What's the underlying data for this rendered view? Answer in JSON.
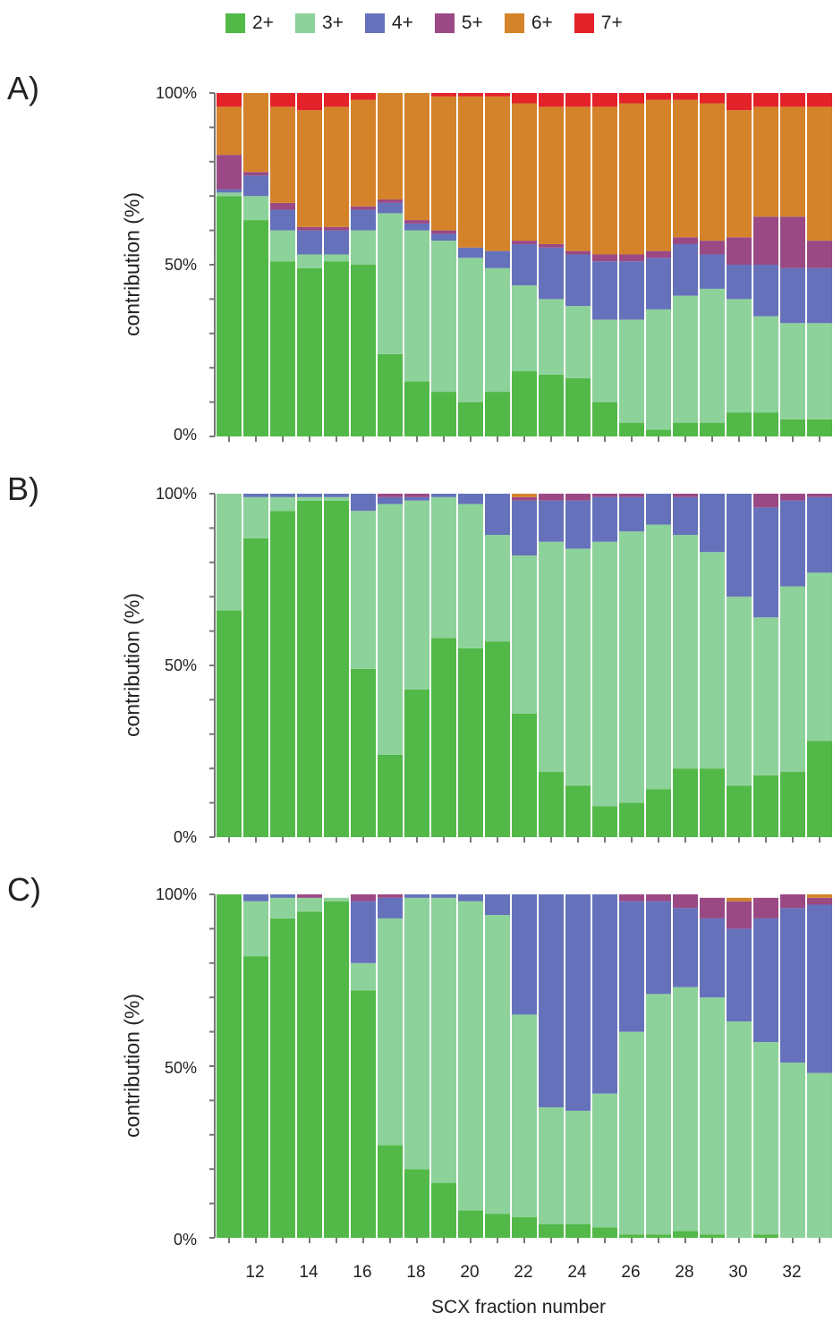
{
  "legend": [
    {
      "label": "2+",
      "color": "#52b848"
    },
    {
      "label": "3+",
      "color": "#8dd29a"
    },
    {
      "label": "4+",
      "color": "#6572bb"
    },
    {
      "label": "5+",
      "color": "#9a4985"
    },
    {
      "label": "6+",
      "color": "#d4832a"
    },
    {
      "label": "7+",
      "color": "#e3222a"
    }
  ],
  "xlabel": "SCX fraction number",
  "ylabel": "contribution (%)",
  "y_ticks": [
    "0%",
    "50%",
    "100%"
  ],
  "x_ticks": [
    "12",
    "14",
    "16",
    "18",
    "20",
    "22",
    "24",
    "26",
    "28",
    "30",
    "32"
  ],
  "panels": [
    {
      "label": "A)"
    },
    {
      "label": "B)"
    },
    {
      "label": "C)"
    }
  ],
  "chart_data": [
    {
      "type": "bar",
      "stacked": true,
      "title": "A)",
      "xlabel": "SCX fraction number",
      "ylabel": "contribution (%)",
      "ylim": [
        0,
        100
      ],
      "categories": [
        "11",
        "12",
        "13",
        "14",
        "15",
        "16",
        "17",
        "18",
        "19",
        "20",
        "21",
        "22",
        "23",
        "24",
        "25",
        "26",
        "27",
        "28",
        "29",
        "30",
        "31",
        "32",
        "33"
      ],
      "series": [
        {
          "name": "2+",
          "values": [
            70,
            63,
            51,
            49,
            51,
            50,
            24,
            16,
            13,
            10,
            13,
            19,
            18,
            17,
            10,
            4,
            2,
            4,
            4,
            7,
            7,
            5,
            5
          ]
        },
        {
          "name": "3+",
          "values": [
            1,
            7,
            9,
            4,
            2,
            10,
            41,
            44,
            44,
            42,
            36,
            25,
            22,
            21,
            24,
            30,
            35,
            37,
            39,
            33,
            28,
            28,
            28
          ]
        },
        {
          "name": "4+",
          "values": [
            1,
            6,
            6,
            7,
            7,
            6,
            3,
            2,
            2,
            3,
            5,
            12,
            15,
            15,
            17,
            17,
            15,
            15,
            10,
            10,
            15,
            16,
            16
          ]
        },
        {
          "name": "5+",
          "values": [
            10,
            1,
            2,
            1,
            1,
            1,
            1,
            1,
            1,
            0,
            0,
            1,
            1,
            1,
            2,
            2,
            2,
            2,
            4,
            8,
            14,
            15,
            8
          ]
        },
        {
          "name": "6+",
          "values": [
            14,
            27,
            28,
            34,
            35,
            31,
            31,
            37,
            39,
            44,
            45,
            40,
            40,
            42,
            43,
            44,
            44,
            40,
            40,
            37,
            32,
            32,
            39
          ]
        },
        {
          "name": "7+",
          "values": [
            4,
            1,
            4,
            5,
            4,
            2,
            0,
            0,
            1,
            1,
            1,
            3,
            4,
            4,
            4,
            3,
            2,
            2,
            3,
            5,
            4,
            4,
            4
          ]
        }
      ]
    },
    {
      "type": "bar",
      "stacked": true,
      "title": "B)",
      "xlabel": "SCX fraction number",
      "ylabel": "contribution (%)",
      "ylim": [
        0,
        100
      ],
      "categories": [
        "11",
        "12",
        "13",
        "14",
        "15",
        "16",
        "17",
        "18",
        "19",
        "20",
        "21",
        "22",
        "23",
        "24",
        "25",
        "26",
        "27",
        "28",
        "29",
        "30",
        "31",
        "32",
        "33"
      ],
      "series": [
        {
          "name": "2+",
          "values": [
            66,
            87,
            95,
            98,
            98,
            49,
            24,
            43,
            58,
            55,
            57,
            36,
            19,
            15,
            9,
            10,
            14,
            20,
            20,
            15,
            18,
            19,
            28
          ]
        },
        {
          "name": "3+",
          "values": [
            34,
            12,
            4,
            1,
            1,
            46,
            73,
            55,
            41,
            42,
            31,
            46,
            67,
            69,
            77,
            79,
            77,
            68,
            63,
            55,
            46,
            54,
            49
          ]
        },
        {
          "name": "4+",
          "values": [
            0,
            1,
            1,
            1,
            1,
            5,
            2,
            1,
            1,
            3,
            12,
            16,
            12,
            14,
            13,
            10,
            9,
            11,
            17,
            30,
            32,
            25,
            22
          ]
        },
        {
          "name": "5+",
          "values": [
            0,
            0,
            0,
            0,
            0,
            0,
            1,
            1,
            0,
            0,
            0,
            1,
            2,
            2,
            1,
            1,
            0,
            1,
            0,
            0,
            4,
            2,
            1
          ]
        },
        {
          "name": "6+",
          "values": [
            0,
            0,
            0,
            0,
            0,
            0,
            0,
            0,
            0,
            0,
            0,
            1,
            0,
            0,
            0,
            0,
            0,
            0,
            0,
            0,
            0,
            0,
            0
          ]
        },
        {
          "name": "7+",
          "values": [
            0,
            0,
            0,
            0,
            0,
            0,
            0,
            0,
            0,
            0,
            0,
            0,
            0,
            0,
            0,
            0,
            0,
            0,
            0,
            0,
            0,
            0,
            0
          ]
        }
      ]
    },
    {
      "type": "bar",
      "stacked": true,
      "title": "C)",
      "xlabel": "SCX fraction number",
      "ylabel": "contribution (%)",
      "ylim": [
        0,
        100
      ],
      "categories": [
        "11",
        "12",
        "13",
        "14",
        "15",
        "16",
        "17",
        "18",
        "19",
        "20",
        "21",
        "22",
        "23",
        "24",
        "25",
        "26",
        "27",
        "28",
        "29",
        "30",
        "31",
        "32",
        "33"
      ],
      "series": [
        {
          "name": "2+",
          "values": [
            100,
            82,
            93,
            95,
            98,
            72,
            27,
            20,
            16,
            8,
            7,
            6,
            4,
            4,
            3,
            1,
            1,
            2,
            1,
            0,
            1,
            0,
            0
          ]
        },
        {
          "name": "3+",
          "values": [
            0,
            16,
            6,
            4,
            1,
            8,
            66,
            79,
            83,
            90,
            87,
            59,
            34,
            33,
            39,
            59,
            70,
            71,
            69,
            63,
            56,
            51,
            48
          ]
        },
        {
          "name": "4+",
          "values": [
            0,
            2,
            1,
            0,
            0,
            18,
            6,
            1,
            1,
            2,
            6,
            35,
            62,
            63,
            58,
            38,
            27,
            23,
            23,
            27,
            36,
            45,
            49
          ]
        },
        {
          "name": "5+",
          "values": [
            0,
            0,
            0,
            1,
            0,
            2,
            1,
            0,
            0,
            0,
            0,
            0,
            0,
            0,
            0,
            2,
            2,
            4,
            6,
            8,
            6,
            4,
            2
          ]
        },
        {
          "name": "6+",
          "values": [
            0,
            0,
            0,
            0,
            0,
            0,
            0,
            0,
            0,
            0,
            0,
            0,
            0,
            0,
            0,
            0,
            0,
            0,
            0,
            1,
            0,
            0,
            1
          ]
        },
        {
          "name": "7+",
          "values": [
            0,
            0,
            0,
            0,
            0,
            0,
            0,
            0,
            0,
            0,
            0,
            0,
            0,
            0,
            0,
            0,
            0,
            0,
            0,
            0,
            0,
            0,
            0
          ]
        }
      ]
    }
  ]
}
